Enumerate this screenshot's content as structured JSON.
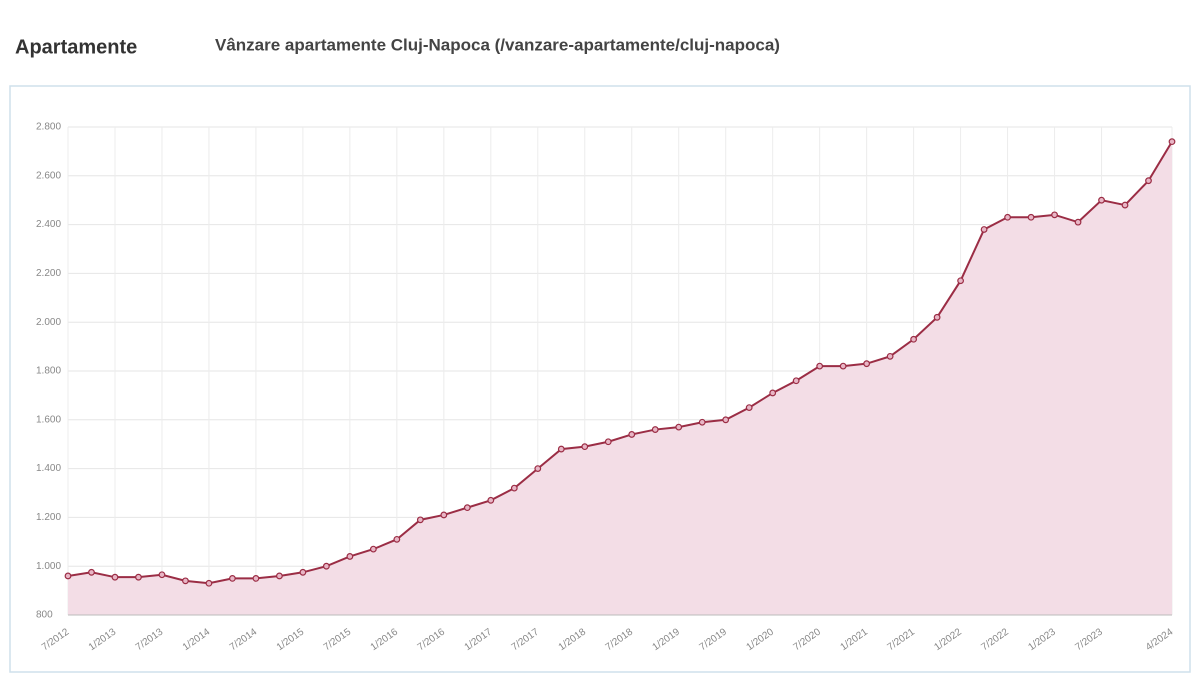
{
  "chart_data": {
    "type": "line",
    "title": "Apartamente",
    "subtitle": "Vânzare apartamente Cluj-Napoca (/vanzare-apartamente/cluj-napoca)",
    "x": [
      "7/2012",
      "10/2012",
      "1/2013",
      "4/2013",
      "7/2013",
      "10/2013",
      "1/2014",
      "4/2014",
      "7/2014",
      "10/2014",
      "1/2015",
      "4/2015",
      "7/2015",
      "10/2015",
      "1/2016",
      "4/2016",
      "7/2016",
      "10/2016",
      "1/2017",
      "4/2017",
      "7/2017",
      "10/2017",
      "1/2018",
      "4/2018",
      "7/2018",
      "10/2018",
      "1/2019",
      "4/2019",
      "7/2019",
      "10/2019",
      "1/2020",
      "4/2020",
      "7/2020",
      "10/2020",
      "1/2021",
      "4/2021",
      "7/2021",
      "10/2021",
      "1/2022",
      "4/2022",
      "7/2022",
      "10/2022",
      "1/2023",
      "4/2023",
      "7/2023",
      "10/2023",
      "1/2024",
      "4/2024"
    ],
    "series": [
      {
        "color": "#9b2d45",
        "fill": "#f3dde6",
        "values": [
          960,
          975,
          955,
          955,
          965,
          940,
          930,
          950,
          950,
          960,
          975,
          1000,
          1040,
          1070,
          1110,
          1190,
          1210,
          1240,
          1270,
          1320,
          1400,
          1480,
          1490,
          1510,
          1540,
          1560,
          1570,
          1590,
          1600,
          1650,
          1710,
          1760,
          1820,
          1820,
          1830,
          1860,
          1930,
          2020,
          2170,
          2380,
          2430,
          2430,
          2440,
          2410,
          2500,
          2480,
          2580,
          2740
        ]
      }
    ],
    "xticks": [
      "7/2012",
      "1/2013",
      "7/2013",
      "1/2014",
      "7/2014",
      "1/2015",
      "7/2015",
      "1/2016",
      "7/2016",
      "1/2017",
      "7/2017",
      "1/2018",
      "7/2018",
      "1/2019",
      "7/2019",
      "1/2020",
      "7/2020",
      "1/2021",
      "7/2021",
      "1/2022",
      "7/2022",
      "1/2023",
      "7/2023",
      "4/2024"
    ],
    "ylim": [
      800,
      2800
    ],
    "yticks": [
      800,
      {
        "value": 1000,
        "label": "1.000"
      },
      {
        "value": 1200,
        "label": "1.200"
      },
      {
        "value": 1400,
        "label": "1.400"
      },
      {
        "value": 1600,
        "label": "1.600"
      },
      {
        "value": 1800,
        "label": "1.800"
      },
      {
        "value": 2000,
        "label": "2.000"
      },
      {
        "value": 2200,
        "label": "2.200"
      },
      {
        "value": 2400,
        "label": "2.400"
      },
      {
        "value": 2600,
        "label": "2.600"
      },
      {
        "value": 2800,
        "label": "2.800"
      }
    ],
    "grid": true
  }
}
